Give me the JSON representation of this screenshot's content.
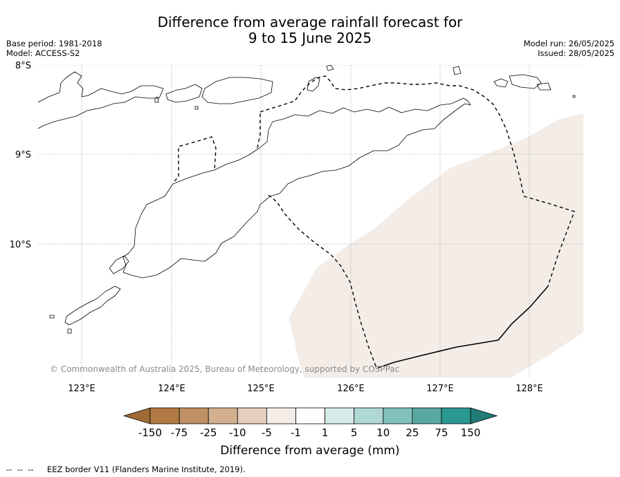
{
  "header": {
    "title_line1": "Difference from average rainfall forecast for",
    "title_line2": "9 to 15 June 2025",
    "base_period": "Base period: 1981-2018",
    "model": "Model: ACCESS-S2",
    "model_run": "Model run: 26/05/2025",
    "issued": "Issued: 28/05/2025"
  },
  "map": {
    "lat_labels": [
      "8°S",
      "9°S",
      "10°S"
    ],
    "lon_labels": [
      "123°E",
      "124°E",
      "125°E",
      "126°E",
      "127°E",
      "128°E"
    ],
    "copyright": "© Commonwealth of Australia 2025, Bureau of Meteorology, supported by COSPPac",
    "anomaly_fill_color": "#f4ede7"
  },
  "colorbar": {
    "ticks": [
      "-150",
      "-75",
      "-25",
      "-10",
      "-5",
      "-1",
      "1",
      "5",
      "10",
      "25",
      "75",
      "150"
    ],
    "colors": [
      "#9e6a35",
      "#b07a42",
      "#c09165",
      "#d2af8e",
      "#e4cfbc",
      "#f4ede7",
      "#ffffff",
      "#d5ebe8",
      "#b0d8d4",
      "#82c0bb",
      "#5aa8a3",
      "#2b9892",
      "#217c78"
    ],
    "label": "Difference from average (mm)"
  },
  "footer": {
    "legend_symbol": "--  --  --",
    "legend_text": "EEZ border V11 (Flanders Marine Institute, 2019)."
  }
}
